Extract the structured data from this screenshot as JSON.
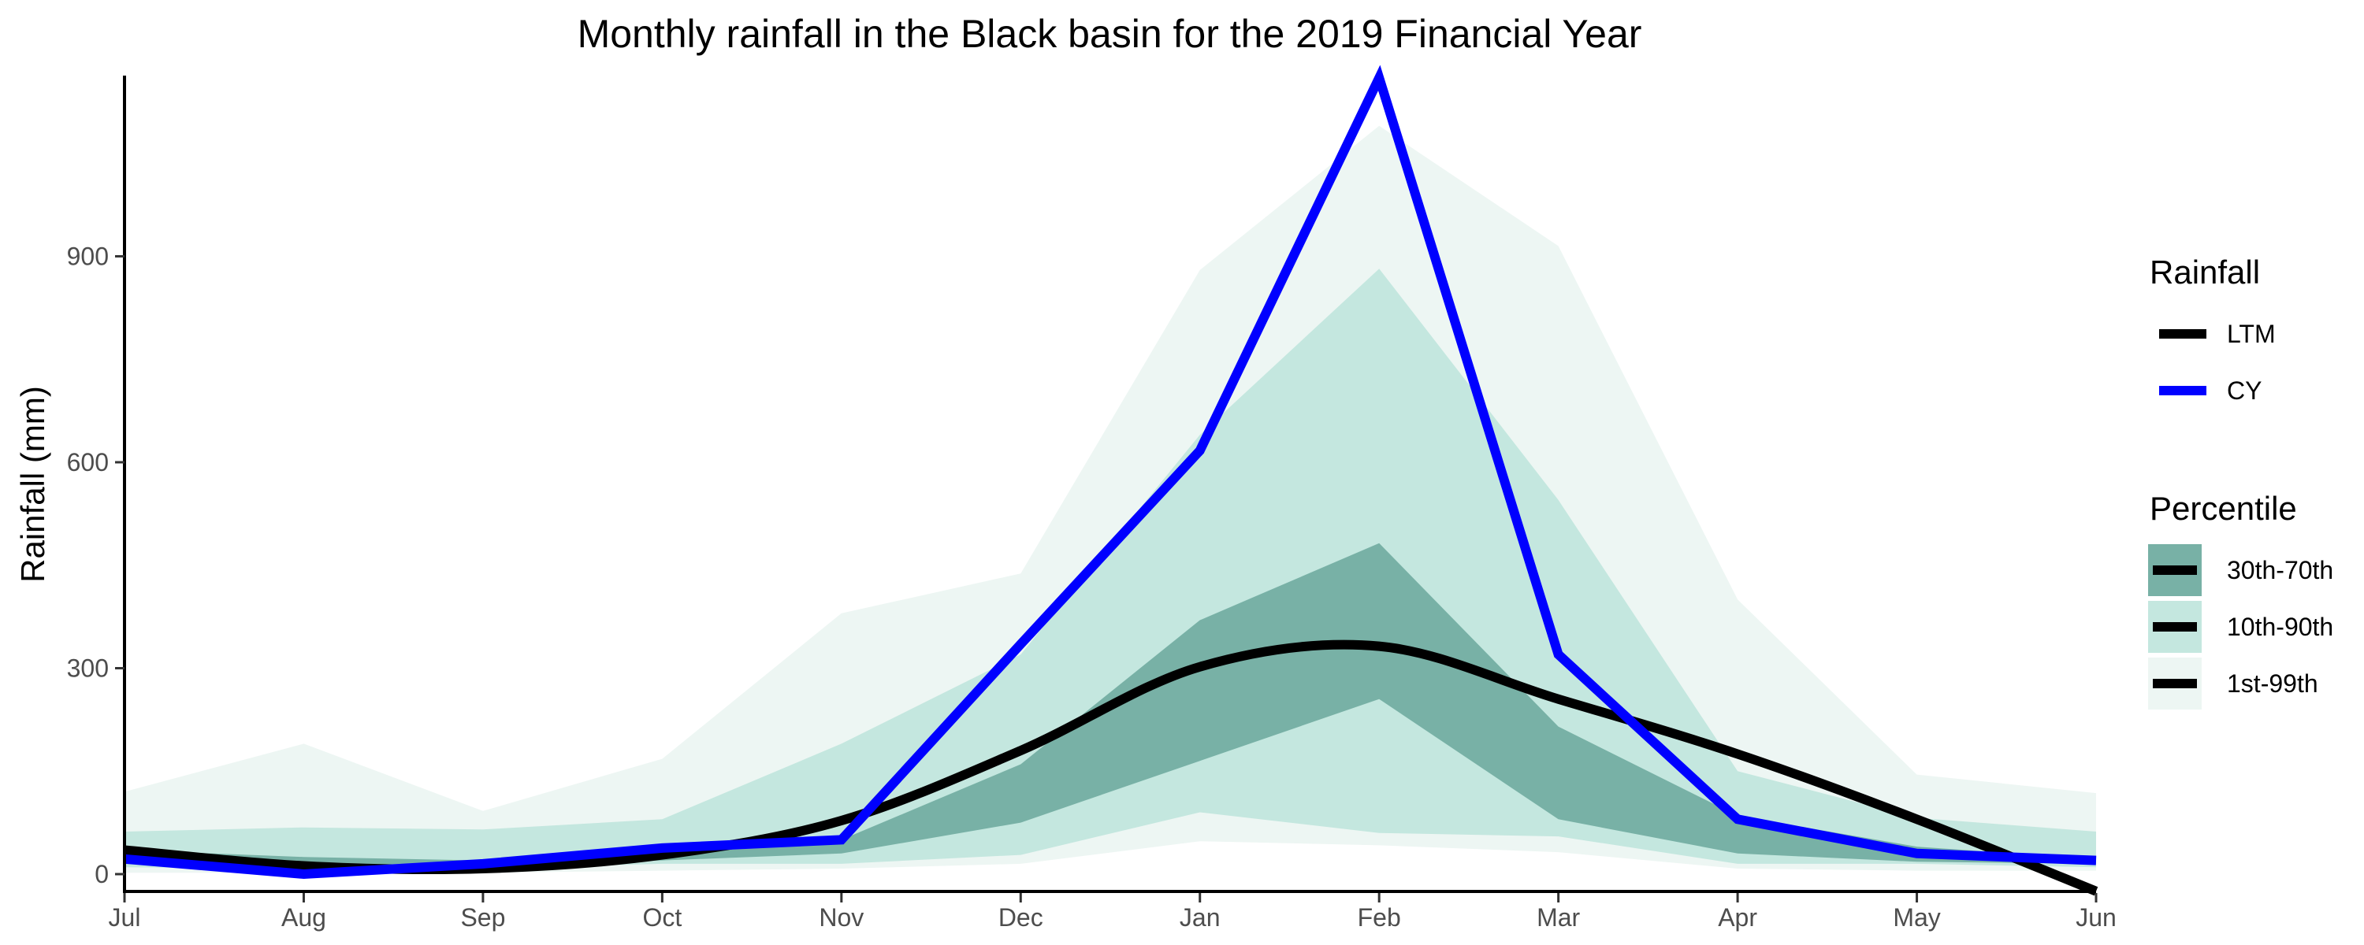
{
  "chart_data": {
    "type": "line",
    "title": "Monthly rainfall in the Black basin for the 2019 Financial Year",
    "xlabel": "",
    "ylabel": "Rainfall (mm)",
    "categories": [
      "Jul",
      "Aug",
      "Sep",
      "Oct",
      "Nov",
      "Dec",
      "Jan",
      "Feb",
      "Mar",
      "Apr",
      "May",
      "Jun"
    ],
    "ylim": [
      -25,
      1160
    ],
    "yticks": [
      0,
      300,
      600,
      900
    ],
    "grid": false,
    "legend_position": "right",
    "series": [
      {
        "name": "LTM",
        "color": "#000000",
        "values": [
          35,
          12,
          8,
          28,
          78,
          180,
          302,
          332,
          255,
          175,
          80,
          -25
        ]
      },
      {
        "name": "CY",
        "color": "#0000ff",
        "values": [
          22,
          0,
          15,
          38,
          50,
          335,
          617,
          1160,
          320,
          80,
          30,
          20
        ]
      }
    ],
    "bands": [
      {
        "name": "1st-99th",
        "color": "#edf6f3",
        "lower": [
          2,
          2,
          2,
          5,
          8,
          15,
          48,
          42,
          32,
          8,
          5,
          5
        ],
        "upper": [
          120,
          190,
          92,
          168,
          380,
          438,
          880,
          1090,
          915,
          400,
          145,
          118
        ]
      },
      {
        "name": "10th-90th",
        "color": "#c4e7df",
        "lower": [
          10,
          8,
          8,
          15,
          15,
          28,
          90,
          60,
          55,
          15,
          15,
          10
        ],
        "upper": [
          62,
          68,
          65,
          80,
          190,
          320,
          640,
          882,
          545,
          150,
          82,
          62
        ]
      },
      {
        "name": "30th-70th",
        "color": "#78b1a6",
        "lower": [
          18,
          15,
          12,
          20,
          30,
          75,
          165,
          255,
          80,
          30,
          18,
          15
        ],
        "upper": [
          35,
          25,
          20,
          38,
          50,
          160,
          370,
          482,
          215,
          85,
          40,
          22
        ]
      }
    ],
    "legend": {
      "rainfall_title": "Rainfall",
      "percentile_title": "Percentile",
      "percentile_order": [
        "30th-70th",
        "10th-90th",
        "1st-99th"
      ]
    }
  }
}
